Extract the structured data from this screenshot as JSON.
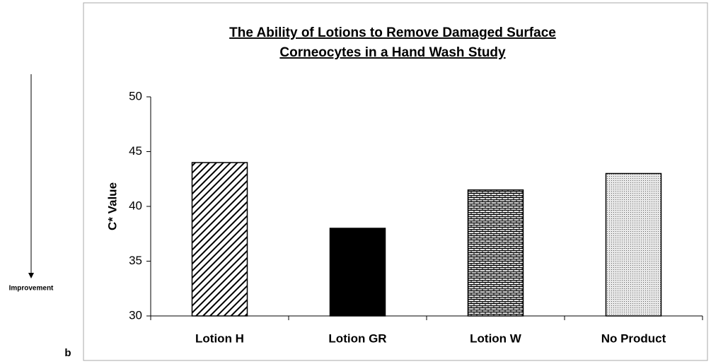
{
  "chart_data": {
    "type": "bar",
    "title": [
      "The Ability of Lotions to Remove Damaged Surface",
      "Corneocytes in a Hand Wash Study"
    ],
    "ylabel": "C* Value",
    "annotation": "Improvement",
    "panel_label": "b",
    "categories": [
      "Lotion H",
      "Lotion GR",
      "Lotion W",
      "No Product"
    ],
    "values": [
      44,
      38,
      41.5,
      43
    ],
    "ylim": [
      30,
      50
    ],
    "yticks": [
      30,
      35,
      40,
      45,
      50
    ],
    "grid": false
  }
}
